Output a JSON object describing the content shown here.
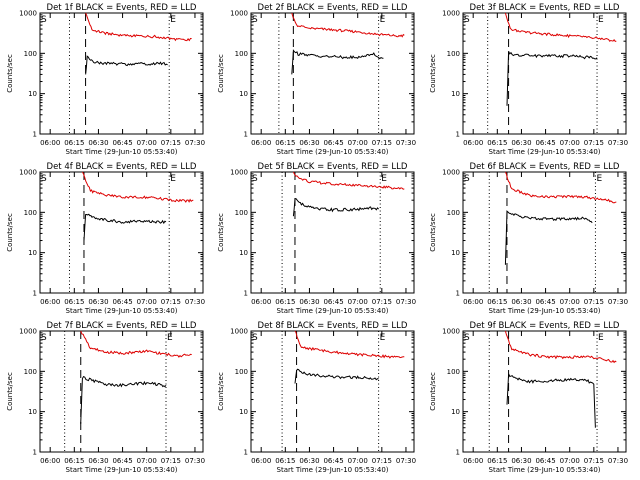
{
  "colors": {
    "events": "#000000",
    "lld": "#dd0000",
    "background": "#ffffff"
  },
  "chart_data": {
    "type": "line",
    "date": "29-Jun-10",
    "xlabel": "Start Time (29-Jun-10 05:53:40)",
    "ylabel": "Counts/sec",
    "yscale": "log",
    "ylim": [
      1,
      1000
    ],
    "y_ticks": [
      "1",
      "10",
      "100",
      "1000"
    ],
    "x_ticks": [
      "06:00",
      "06:15",
      "06:30",
      "06:45",
      "07:00",
      "07:15",
      "07:30"
    ],
    "xlim": [
      "05:53:40",
      "07:35:00"
    ],
    "markers": {
      "start": "S",
      "end": "E"
    },
    "panels": [
      {
        "title": "Det 1f BLACK = Events, RED = LLD",
        "dotted": [
          "06:12",
          "07:14"
        ],
        "dashed": "06:22",
        "lld": [
          [
            "06:22",
            1000
          ],
          [
            "06:26",
            380
          ],
          [
            "06:35",
            310
          ],
          [
            "06:45",
            280
          ],
          [
            "06:55",
            270
          ],
          [
            "07:05",
            260
          ],
          [
            "07:15",
            230
          ],
          [
            "07:25",
            210
          ],
          [
            "07:28",
            230
          ]
        ],
        "events": [
          [
            "06:22",
            30
          ],
          [
            "06:23",
            80
          ],
          [
            "06:25",
            65
          ],
          [
            "06:30",
            58
          ],
          [
            "06:40",
            55
          ],
          [
            "06:50",
            54
          ],
          [
            "07:00",
            55
          ],
          [
            "07:10",
            56
          ],
          [
            "07:13",
            52
          ]
        ]
      },
      {
        "title": "Det 2f BLACK = Events, RED = LLD",
        "dotted": [
          "06:11",
          "07:13"
        ],
        "dashed": "06:20",
        "lld": [
          [
            "06:19",
            1000
          ],
          [
            "06:22",
            500
          ],
          [
            "06:30",
            420
          ],
          [
            "06:45",
            380
          ],
          [
            "07:00",
            340
          ],
          [
            "07:15",
            290
          ],
          [
            "07:25",
            270
          ],
          [
            "07:29",
            280
          ]
        ],
        "events": [
          [
            "06:19",
            30
          ],
          [
            "06:20",
            120
          ],
          [
            "06:23",
            95
          ],
          [
            "06:30",
            90
          ],
          [
            "06:45",
            82
          ],
          [
            "07:00",
            78
          ],
          [
            "07:10",
            100
          ],
          [
            "07:13",
            80
          ],
          [
            "07:16",
            75
          ]
        ]
      },
      {
        "title": "Det 3f BLACK = Events, RED = LLD",
        "dotted": [
          "06:09",
          "07:17"
        ],
        "dashed": "06:22",
        "lld": [
          [
            "06:20",
            1000
          ],
          [
            "06:23",
            400
          ],
          [
            "06:30",
            340
          ],
          [
            "06:45",
            300
          ],
          [
            "07:00",
            270
          ],
          [
            "07:10",
            255
          ],
          [
            "07:20",
            230
          ],
          [
            "07:29",
            200
          ]
        ],
        "events": [
          [
            "06:21",
            5
          ],
          [
            "06:22",
            110
          ],
          [
            "06:25",
            90
          ],
          [
            "06:35",
            88
          ],
          [
            "06:45",
            86
          ],
          [
            "07:00",
            86
          ],
          [
            "07:10",
            80
          ],
          [
            "07:17",
            78
          ]
        ]
      },
      {
        "title": "Det 4f BLACK = Events, RED = LLD",
        "dotted": [
          "06:12",
          "07:14"
        ],
        "dashed": "06:21",
        "lld": [
          [
            "06:20",
            1000
          ],
          [
            "06:25",
            340
          ],
          [
            "06:35",
            270
          ],
          [
            "06:45",
            240
          ],
          [
            "06:55",
            240
          ],
          [
            "07:05",
            230
          ],
          [
            "07:15",
            200
          ],
          [
            "07:25",
            190
          ],
          [
            "07:29",
            200
          ]
        ],
        "events": [
          [
            "06:21",
            20
          ],
          [
            "06:22",
            95
          ],
          [
            "06:26",
            75
          ],
          [
            "06:35",
            65
          ],
          [
            "06:45",
            58
          ],
          [
            "06:55",
            60
          ],
          [
            "07:05",
            58
          ],
          [
            "07:12",
            58
          ]
        ]
      },
      {
        "title": "Det 5f BLACK = Events, RED = LLD",
        "dotted": [
          "06:13",
          "07:14"
        ],
        "dashed": "06:21",
        "lld": [
          [
            "06:20",
            1000
          ],
          [
            "06:23",
            700
          ],
          [
            "06:30",
            580
          ],
          [
            "06:45",
            500
          ],
          [
            "07:00",
            470
          ],
          [
            "07:15",
            430
          ],
          [
            "07:29",
            380
          ]
        ],
        "events": [
          [
            "06:20",
            80
          ],
          [
            "06:21",
            220
          ],
          [
            "06:25",
            160
          ],
          [
            "06:35",
            120
          ],
          [
            "06:45",
            115
          ],
          [
            "07:00",
            118
          ],
          [
            "07:08",
            125
          ],
          [
            "07:13",
            120
          ]
        ]
      },
      {
        "title": "Det 6f BLACK = Events, RED = LLD",
        "dotted": [
          "06:10",
          "07:16"
        ],
        "dashed": "06:21",
        "lld": [
          [
            "06:20",
            1000
          ],
          [
            "06:24",
            380
          ],
          [
            "06:35",
            260
          ],
          [
            "06:45",
            240
          ],
          [
            "07:00",
            250
          ],
          [
            "07:10",
            240
          ],
          [
            "07:20",
            210
          ],
          [
            "07:29",
            180
          ]
        ],
        "events": [
          [
            "06:20",
            5
          ],
          [
            "06:21",
            100
          ],
          [
            "06:26",
            85
          ],
          [
            "06:35",
            72
          ],
          [
            "06:45",
            68
          ],
          [
            "07:00",
            70
          ],
          [
            "07:10",
            72
          ],
          [
            "07:14",
            55
          ]
        ]
      },
      {
        "title": "Det 7f BLACK = Events, RED = LLD",
        "dotted": [
          "06:09",
          "07:12"
        ],
        "dashed": "06:19",
        "lld": [
          [
            "06:19",
            1000
          ],
          [
            "06:25",
            380
          ],
          [
            "06:35",
            300
          ],
          [
            "06:45",
            280
          ],
          [
            "07:00",
            320
          ],
          [
            "07:10",
            270
          ],
          [
            "07:20",
            240
          ],
          [
            "07:28",
            260
          ]
        ],
        "events": [
          [
            "06:19",
            5
          ],
          [
            "06:20",
            70
          ],
          [
            "06:26",
            60
          ],
          [
            "06:35",
            48
          ],
          [
            "06:45",
            45
          ],
          [
            "07:00",
            52
          ],
          [
            "07:08",
            46
          ],
          [
            "07:12",
            45
          ]
        ]
      },
      {
        "title": "Det 8f BLACK = Events, RED = LLD",
        "dotted": [
          "06:13",
          "07:13"
        ],
        "dashed": "06:22",
        "lld": [
          [
            "06:21",
            1000
          ],
          [
            "06:25",
            400
          ],
          [
            "06:35",
            340
          ],
          [
            "06:45",
            300
          ],
          [
            "07:00",
            260
          ],
          [
            "07:15",
            240
          ],
          [
            "07:25",
            220
          ],
          [
            "07:29",
            230
          ]
        ],
        "events": [
          [
            "06:21",
            50
          ],
          [
            "06:22",
            110
          ],
          [
            "06:26",
            90
          ],
          [
            "06:35",
            80
          ],
          [
            "06:45",
            72
          ],
          [
            "07:00",
            70
          ],
          [
            "07:10",
            68
          ],
          [
            "07:13",
            65
          ]
        ]
      },
      {
        "title": "Det 9f BLACK = Events, RED = LLD",
        "dotted": [
          "06:10",
          "07:17"
        ],
        "dashed": "06:22",
        "lld": [
          [
            "06:20",
            1000
          ],
          [
            "06:24",
            350
          ],
          [
            "06:35",
            260
          ],
          [
            "06:45",
            230
          ],
          [
            "07:00",
            220
          ],
          [
            "07:10",
            240
          ],
          [
            "07:20",
            200
          ],
          [
            "07:29",
            170
          ]
        ],
        "events": [
          [
            "06:21",
            15
          ],
          [
            "06:22",
            80
          ],
          [
            "06:25",
            70
          ],
          [
            "06:35",
            55
          ],
          [
            "06:45",
            58
          ],
          [
            "07:00",
            62
          ],
          [
            "07:10",
            60
          ],
          [
            "07:15",
            50
          ],
          [
            "07:16",
            4
          ]
        ]
      }
    ]
  }
}
